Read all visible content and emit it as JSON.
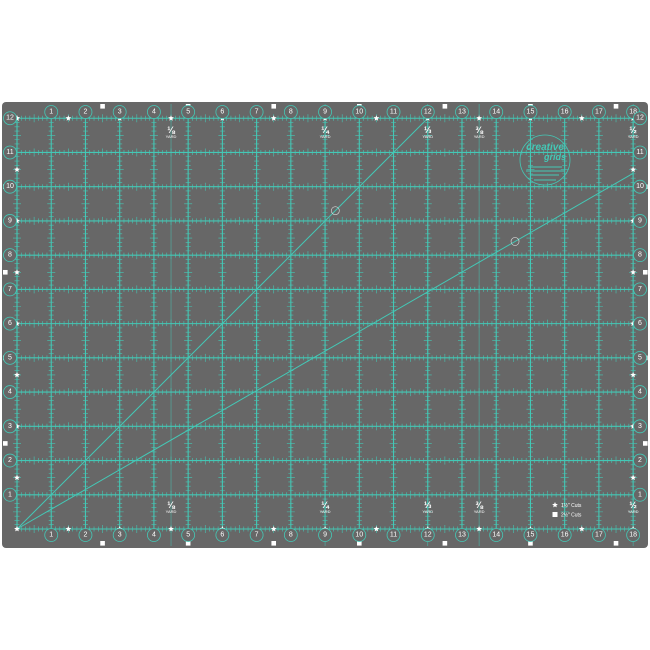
{
  "mat": {
    "colors": {
      "mat": "#676767",
      "grid": "#44c8b6",
      "marker": "#ffffff"
    },
    "column_numbers": [
      "1",
      "2",
      "3",
      "4",
      "5",
      "6",
      "7",
      "8",
      "9",
      "10",
      "11",
      "12",
      "13",
      "14",
      "15",
      "16",
      "17",
      "18"
    ],
    "row_numbers": [
      "1",
      "2",
      "3",
      "4",
      "5",
      "6",
      "7",
      "8",
      "9",
      "10",
      "11",
      "12"
    ],
    "grid_units": {
      "width_inches": 18,
      "height_inches": 12,
      "subdivision": "1/8 inch"
    },
    "yard_marks": [
      {
        "inches": 4.5,
        "fraction": "⅛",
        "unit": "YARD"
      },
      {
        "inches": 9,
        "fraction": "¼",
        "unit": "YARD"
      },
      {
        "inches": 12,
        "fraction": "⅓",
        "unit": "YARD"
      },
      {
        "inches": 13.5,
        "fraction": "⅜",
        "unit": "YARD"
      },
      {
        "inches": 18,
        "fraction": "½",
        "unit": "YARD"
      }
    ],
    "angle_lines_degrees": [
      45,
      30
    ],
    "legend": [
      {
        "icon": "star-icon",
        "label": "1½\" Cuts",
        "spacing_inches": 1.5
      },
      {
        "icon": "square-icon",
        "label": "2½\" Cuts",
        "spacing_inches": 2.5
      }
    ],
    "logo": {
      "text_line1": "creative",
      "text_line2": "grids"
    }
  }
}
